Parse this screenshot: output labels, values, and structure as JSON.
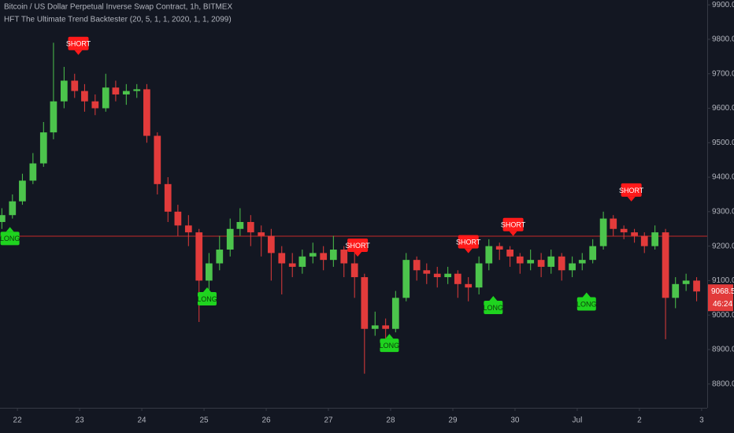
{
  "chart_data": {
    "type": "candlestick",
    "title": "Bitcoin / US Dollar Perpetual Inverse Swap Contract, 1h, BITMEX",
    "subtitle": "HFT The Ultimate Trend Backtester (20, 5, 1, 1, 2020, 1, 1, 2099)",
    "up_color": "#4cc44c",
    "down_color": "#e23b3b",
    "xlim": [
      21.72,
      33.09
    ],
    "ylim": [
      8731,
      9914
    ],
    "xticks": [
      22,
      23,
      24,
      25,
      26,
      27,
      28,
      29,
      30,
      {
        "value": 31,
        "label": "Jul"
      },
      {
        "value": 32,
        "label": "2"
      },
      {
        "value": 33,
        "label": "3"
      }
    ],
    "yticks": [
      {
        "value": 8800,
        "label": "8800.0"
      },
      {
        "value": 8900,
        "label": "8900.0"
      },
      {
        "value": 9000,
        "label": "9000.0"
      },
      {
        "value": 9100,
        "label": "9100.0"
      },
      {
        "value": 9200,
        "label": "9200.0"
      },
      {
        "value": 9300,
        "label": "9300.0"
      },
      {
        "value": 9400,
        "label": "9400.0"
      },
      {
        "value": 9500,
        "label": "9500.0"
      },
      {
        "value": 9600,
        "label": "9600.0"
      },
      {
        "value": 9700,
        "label": "9700.0"
      },
      {
        "value": 9800,
        "label": "9800.0"
      },
      {
        "value": 9900,
        "label": "9900.0"
      }
    ],
    "x": [
      21.75,
      21.92,
      22.08,
      22.25,
      22.42,
      22.58,
      22.75,
      22.92,
      23.08,
      23.25,
      23.42,
      23.58,
      23.75,
      23.92,
      24.08,
      24.25,
      24.42,
      24.58,
      24.75,
      24.92,
      25.08,
      25.25,
      25.42,
      25.58,
      25.75,
      25.92,
      26.08,
      26.25,
      26.42,
      26.58,
      26.75,
      26.92,
      27.08,
      27.25,
      27.42,
      27.58,
      27.75,
      27.92,
      28.08,
      28.25,
      28.42,
      28.58,
      28.75,
      28.92,
      29.08,
      29.25,
      29.42,
      29.58,
      29.75,
      29.92,
      30.08,
      30.25,
      30.42,
      30.58,
      30.75,
      30.92,
      31.08,
      31.25,
      31.42,
      31.58,
      31.75,
      31.92,
      32.08,
      32.25,
      32.42,
      32.58,
      32.75,
      32.92
    ],
    "open": [
      9270,
      9290,
      9330,
      9390,
      9440,
      9530,
      9620,
      9680,
      9650,
      9620,
      9600,
      9660,
      9640,
      9650,
      9655,
      9520,
      9380,
      9300,
      9260,
      9240,
      9100,
      9150,
      9190,
      9250,
      9270,
      9240,
      9230,
      9180,
      9150,
      9140,
      9170,
      9180,
      9160,
      9190,
      9150,
      9110,
      8960,
      8970,
      8960,
      9050,
      9160,
      9130,
      9120,
      9110,
      9120,
      9090,
      9080,
      9150,
      9200,
      9190,
      9170,
      9150,
      9160,
      9140,
      9170,
      9130,
      9150,
      9160,
      9200,
      9280,
      9250,
      9240,
      9230,
      9200,
      9240,
      9050,
      9090,
      9100
    ],
    "high": [
      9310,
      9350,
      9410,
      9470,
      9560,
      9790,
      9720,
      9700,
      9670,
      9640,
      9700,
      9680,
      9670,
      9670,
      9670,
      9530,
      9400,
      9320,
      9290,
      9250,
      9180,
      9230,
      9280,
      9310,
      9290,
      9260,
      9250,
      9200,
      9180,
      9190,
      9210,
      9200,
      9230,
      9200,
      9180,
      9120,
      9010,
      8990,
      9070,
      9180,
      9170,
      9150,
      9140,
      9140,
      9130,
      9110,
      9170,
      9220,
      9210,
      9200,
      9180,
      9190,
      9180,
      9190,
      9180,
      9170,
      9180,
      9220,
      9300,
      9290,
      9260,
      9250,
      9240,
      9260,
      9250,
      9110,
      9120,
      9110
    ],
    "low": [
      9250,
      9280,
      9320,
      9380,
      9430,
      9510,
      9600,
      9630,
      9590,
      9580,
      9590,
      9620,
      9610,
      9630,
      9500,
      9350,
      9270,
      9230,
      9200,
      8980,
      9060,
      9130,
      9170,
      9230,
      9200,
      9170,
      9100,
      9060,
      9110,
      9120,
      9150,
      9130,
      9140,
      9110,
      9050,
      8830,
      8940,
      8930,
      8950,
      9040,
      9100,
      9090,
      9080,
      9090,
      9050,
      9040,
      9060,
      9130,
      9160,
      9140,
      9120,
      9130,
      9110,
      9120,
      9100,
      9110,
      9130,
      9150,
      9190,
      9230,
      9220,
      9210,
      9180,
      9190,
      8930,
      9020,
      9070,
      9040
    ],
    "close": [
      9290,
      9330,
      9390,
      9440,
      9530,
      9620,
      9680,
      9650,
      9620,
      9600,
      9660,
      9640,
      9650,
      9655,
      9520,
      9380,
      9300,
      9260,
      9240,
      9100,
      9150,
      9190,
      9250,
      9270,
      9240,
      9230,
      9180,
      9150,
      9140,
      9170,
      9180,
      9160,
      9190,
      9150,
      9110,
      8960,
      8970,
      8960,
      9050,
      9160,
      9130,
      9120,
      9110,
      9120,
      9090,
      9080,
      9150,
      9200,
      9190,
      9170,
      9150,
      9160,
      9140,
      9170,
      9130,
      9150,
      9160,
      9200,
      9280,
      9250,
      9240,
      9230,
      9200,
      9240,
      9050,
      9090,
      9100,
      9068.5
    ],
    "hline": 9229,
    "hline_color": "#c62828",
    "long_color": "#1fd31f",
    "short_color": "#ff1a1a",
    "signals": [
      {
        "label": "LONG",
        "x": 21.88,
        "price": 9260
      },
      {
        "label": "SHORT",
        "x": 22.98,
        "price": 9750
      },
      {
        "label": "LONG",
        "x": 25.05,
        "price": 9085
      },
      {
        "label": "SHORT",
        "x": 27.47,
        "price": 9165
      },
      {
        "label": "LONG",
        "x": 27.98,
        "price": 8950
      },
      {
        "label": "SHORT",
        "x": 29.25,
        "price": 9175
      },
      {
        "label": "LONG",
        "x": 29.65,
        "price": 9060
      },
      {
        "label": "SHORT",
        "x": 29.97,
        "price": 9225
      },
      {
        "label": "LONG",
        "x": 31.15,
        "price": 9070
      },
      {
        "label": "SHORT",
        "x": 31.87,
        "price": 9325
      }
    ],
    "last_price": 9068.5,
    "countdown": "46:24"
  }
}
